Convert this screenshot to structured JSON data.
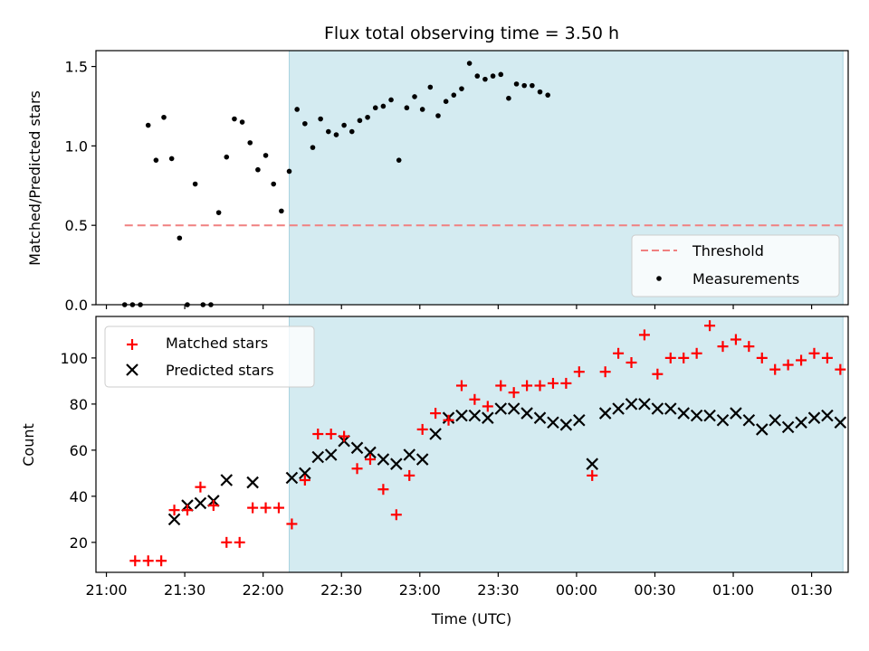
{
  "title": "Flux total observing time = 3.50 h",
  "chart_data": [
    {
      "type": "scatter",
      "panel": "top",
      "ylabel": "Matched/Predicted stars",
      "ylim": [
        0,
        1.6
      ],
      "yticks": [
        0.0,
        0.5,
        1.0,
        1.5
      ],
      "ytick_labels": [
        "0.0",
        "0.5",
        "1.0",
        "1.5"
      ],
      "shaded_span": {
        "x": [
          "22:10",
          "01:42"
        ],
        "color": "#d4ebf1"
      },
      "threshold": {
        "name": "Threshold",
        "value": 0.5,
        "x": [
          "21:07",
          "01:42"
        ],
        "color": "#f08080",
        "style": "dashed"
      },
      "series": [
        {
          "name": "Measurements",
          "marker": "dot",
          "color": "#000000",
          "points": [
            [
              "21:07",
              0
            ],
            [
              "21:10",
              0
            ],
            [
              "21:13",
              0
            ],
            [
              "21:16",
              1.13
            ],
            [
              "21:19",
              0.91
            ],
            [
              "21:22",
              1.18
            ],
            [
              "21:25",
              0.92
            ],
            [
              "21:28",
              0.42
            ],
            [
              "21:31",
              0
            ],
            [
              "21:34",
              0.76
            ],
            [
              "21:37",
              0
            ],
            [
              "21:40",
              0
            ],
            [
              "21:43",
              0.58
            ],
            [
              "21:46",
              0.93
            ],
            [
              "21:49",
              1.17
            ],
            [
              "21:52",
              1.15
            ],
            [
              "21:55",
              1.02
            ],
            [
              "21:58",
              0.85
            ],
            [
              "22:01",
              0.94
            ],
            [
              "22:04",
              0.76
            ],
            [
              "22:07",
              0.59
            ],
            [
              "22:10",
              0.84
            ],
            [
              "22:13",
              1.23
            ],
            [
              "22:16",
              1.14
            ],
            [
              "22:19",
              0.99
            ],
            [
              "22:22",
              1.17
            ],
            [
              "22:25",
              1.09
            ],
            [
              "22:28",
              1.07
            ],
            [
              "22:31",
              1.13
            ],
            [
              "22:34",
              1.09
            ],
            [
              "22:37",
              1.16
            ],
            [
              "22:40",
              1.18
            ],
            [
              "22:43",
              1.24
            ],
            [
              "22:46",
              1.25
            ],
            [
              "22:49",
              1.29
            ],
            [
              "22:52",
              0.91
            ],
            [
              "22:55",
              1.24
            ],
            [
              "22:58",
              1.31
            ],
            [
              "23:01",
              1.23
            ],
            [
              "23:04",
              1.37
            ],
            [
              "23:07",
              1.19
            ],
            [
              "23:10",
              1.28
            ],
            [
              "23:13",
              1.32
            ],
            [
              "23:16",
              1.36
            ],
            [
              "23:19",
              1.52
            ],
            [
              "23:22",
              1.44
            ],
            [
              "23:25",
              1.42
            ],
            [
              "23:28",
              1.44
            ],
            [
              "23:31",
              1.45
            ],
            [
              "23:34",
              1.3
            ],
            [
              "23:37",
              1.39
            ],
            [
              "23:40",
              1.38
            ],
            [
              "23:43",
              1.38
            ],
            [
              "23:46",
              1.34
            ],
            [
              "23:49",
              1.32
            ]
          ]
        }
      ],
      "legend": {
        "position": "lower right",
        "entries": [
          "Threshold",
          "Measurements"
        ]
      }
    },
    {
      "type": "scatter",
      "panel": "bottom",
      "xlabel": "Time (UTC)",
      "ylabel": "Count",
      "ylim": [
        7,
        118
      ],
      "yticks": [
        20,
        40,
        60,
        80,
        100
      ],
      "ytick_labels": [
        "20",
        "40",
        "60",
        "80",
        "100"
      ],
      "xticks": [
        "21:00",
        "21:30",
        "22:00",
        "22:30",
        "23:00",
        "23:30",
        "00:00",
        "00:30",
        "01:00",
        "01:30"
      ],
      "shaded_span": {
        "x": [
          "22:10",
          "01:42"
        ],
        "color": "#d4ebf1"
      },
      "series": [
        {
          "name": "Matched stars",
          "marker": "plus",
          "color": "#ff0000",
          "points": [
            [
              "21:11",
              12
            ],
            [
              "21:16",
              12
            ],
            [
              "21:21",
              12
            ],
            [
              "21:26",
              34
            ],
            [
              "21:31",
              34
            ],
            [
              "21:36",
              44
            ],
            [
              "21:41",
              36
            ],
            [
              "21:46",
              20
            ],
            [
              "21:51",
              20
            ],
            [
              "21:56",
              35
            ],
            [
              "22:01",
              35
            ],
            [
              "22:06",
              35
            ],
            [
              "22:11",
              28
            ],
            [
              "22:16",
              47
            ],
            [
              "22:21",
              67
            ],
            [
              "22:26",
              67
            ],
            [
              "22:31",
              66
            ],
            [
              "22:36",
              52
            ],
            [
              "22:41",
              56
            ],
            [
              "22:46",
              43
            ],
            [
              "22:51",
              32
            ],
            [
              "22:56",
              49
            ],
            [
              "23:01",
              69
            ],
            [
              "23:06",
              76
            ],
            [
              "23:11",
              73
            ],
            [
              "23:16",
              88
            ],
            [
              "23:21",
              82
            ],
            [
              "23:26",
              79
            ],
            [
              "23:31",
              88
            ],
            [
              "23:36",
              85
            ],
            [
              "23:41",
              88
            ],
            [
              "23:46",
              88
            ],
            [
              "23:51",
              89
            ],
            [
              "23:56",
              89
            ],
            [
              "00:01",
              94
            ],
            [
              "00:06",
              49
            ],
            [
              "00:11",
              94
            ],
            [
              "00:16",
              102
            ],
            [
              "00:21",
              98
            ],
            [
              "00:26",
              110
            ],
            [
              "00:31",
              93
            ],
            [
              "00:36",
              100
            ],
            [
              "00:41",
              100
            ],
            [
              "00:46",
              102
            ],
            [
              "00:51",
              114
            ],
            [
              "00:56",
              105
            ],
            [
              "01:01",
              108
            ],
            [
              "01:06",
              105
            ],
            [
              "01:11",
              100
            ],
            [
              "01:16",
              95
            ],
            [
              "01:21",
              97
            ],
            [
              "01:26",
              99
            ],
            [
              "01:31",
              102
            ],
            [
              "01:36",
              100
            ],
            [
              "01:41",
              95
            ]
          ]
        },
        {
          "name": "Predicted stars",
          "marker": "x",
          "color": "#000000",
          "points": [
            [
              "21:26",
              30
            ],
            [
              "21:31",
              36
            ],
            [
              "21:36",
              37
            ],
            [
              "21:41",
              38
            ],
            [
              "21:46",
              47
            ],
            [
              "21:56",
              46
            ],
            [
              "22:11",
              48
            ],
            [
              "22:16",
              50
            ],
            [
              "22:21",
              57
            ],
            [
              "22:26",
              58
            ],
            [
              "22:31",
              64
            ],
            [
              "22:36",
              61
            ],
            [
              "22:41",
              59
            ],
            [
              "22:46",
              56
            ],
            [
              "22:51",
              54
            ],
            [
              "22:56",
              58
            ],
            [
              "23:01",
              56
            ],
            [
              "23:06",
              67
            ],
            [
              "23:11",
              74
            ],
            [
              "23:16",
              75
            ],
            [
              "23:21",
              75
            ],
            [
              "23:26",
              74
            ],
            [
              "23:31",
              78
            ],
            [
              "23:36",
              78
            ],
            [
              "23:41",
              76
            ],
            [
              "23:46",
              74
            ],
            [
              "23:51",
              72
            ],
            [
              "23:56",
              71
            ],
            [
              "00:01",
              73
            ],
            [
              "00:06",
              54
            ],
            [
              "00:11",
              76
            ],
            [
              "00:16",
              78
            ],
            [
              "00:21",
              80
            ],
            [
              "00:26",
              80
            ],
            [
              "00:31",
              78
            ],
            [
              "00:36",
              78
            ],
            [
              "00:41",
              76
            ],
            [
              "00:46",
              75
            ],
            [
              "00:51",
              75
            ],
            [
              "00:56",
              73
            ],
            [
              "01:01",
              76
            ],
            [
              "01:06",
              73
            ],
            [
              "01:11",
              69
            ],
            [
              "01:16",
              73
            ],
            [
              "01:21",
              70
            ],
            [
              "01:26",
              72
            ],
            [
              "01:31",
              74
            ],
            [
              "01:36",
              75
            ],
            [
              "01:41",
              72
            ]
          ]
        }
      ],
      "legend": {
        "position": "upper left",
        "entries": [
          "Matched stars",
          "Predicted stars"
        ]
      }
    }
  ]
}
